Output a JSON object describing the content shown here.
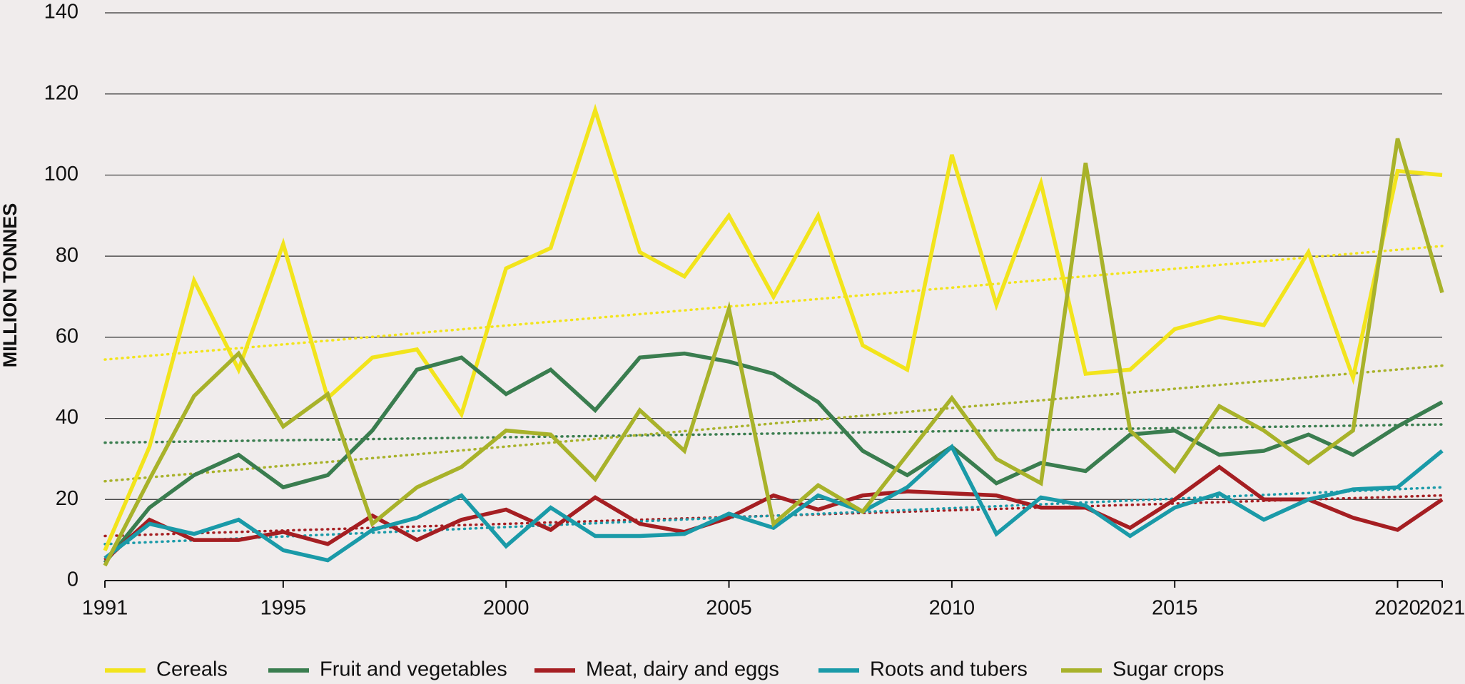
{
  "chart_data": {
    "type": "line",
    "y_label": "MILLION TONNES",
    "x": [
      1991,
      1992,
      1993,
      1994,
      1995,
      1996,
      1997,
      1998,
      1999,
      2000,
      2001,
      2002,
      2003,
      2004,
      2005,
      2006,
      2007,
      2008,
      2009,
      2010,
      2011,
      2012,
      2013,
      2014,
      2015,
      2016,
      2017,
      2018,
      2019,
      2020,
      2021
    ],
    "xlim": [
      1991,
      2021
    ],
    "xticks": [
      1991,
      1995,
      2000,
      2005,
      2010,
      2015,
      2020,
      2021
    ],
    "ylim": [
      0,
      140
    ],
    "yticks": [
      0,
      20,
      40,
      60,
      80,
      100,
      120,
      140
    ],
    "grid": true,
    "legend": "bottom",
    "series": [
      {
        "name": "Cereals",
        "color": "#f2e41c",
        "values": [
          7.4,
          33,
          74,
          52,
          83,
          45,
          55,
          57,
          41,
          77,
          82,
          116,
          81,
          75,
          90,
          70,
          90,
          58,
          52,
          105,
          68,
          98,
          51,
          52,
          62,
          65,
          63,
          81,
          50,
          101,
          100
        ],
        "trend": [
          54.5,
          82.5
        ]
      },
      {
        "name": "Fruit and vegetables",
        "color": "#3a7d4f",
        "values": [
          4.4,
          18,
          26,
          31,
          23,
          26,
          37,
          52,
          55,
          46,
          52,
          42,
          55,
          56,
          54,
          51,
          44,
          32,
          26,
          33,
          24,
          29,
          27,
          36,
          37,
          31,
          32,
          36,
          31,
          38,
          44
        ],
        "trend": [
          34,
          38.5
        ]
      },
      {
        "name": "Meat, dairy and eggs",
        "color": "#a51e22",
        "values": [
          5,
          15,
          10,
          10,
          12,
          9,
          16,
          10,
          15,
          17.5,
          12.5,
          20.5,
          14,
          12,
          15.5,
          21,
          17.5,
          21,
          22,
          21.5,
          21,
          18,
          18,
          13,
          20,
          28,
          20,
          20,
          15.5,
          12.5,
          20
        ],
        "trend": [
          11,
          21
        ]
      },
      {
        "name": "Roots and tubers",
        "color": "#1a9aa8",
        "values": [
          5.5,
          14,
          11.5,
          15,
          7.5,
          5,
          12.5,
          15.5,
          21,
          8.5,
          18,
          11,
          11,
          11.5,
          16.5,
          13,
          21,
          17,
          23,
          33,
          11.5,
          20.5,
          18.5,
          11,
          18,
          21.5,
          15,
          20,
          22.5,
          23,
          32
        ],
        "trend": [
          9,
          23
        ]
      },
      {
        "name": "Sugar crops",
        "color": "#a8b22a",
        "values": [
          3.7,
          25,
          45.5,
          56,
          38,
          46,
          14,
          23,
          28,
          37,
          36,
          25,
          42,
          32,
          67,
          14,
          23.5,
          17,
          31,
          45,
          30,
          24,
          103,
          37,
          27,
          43,
          37,
          29,
          37,
          109,
          71
        ],
        "trend": [
          24.5,
          53
        ]
      }
    ]
  }
}
